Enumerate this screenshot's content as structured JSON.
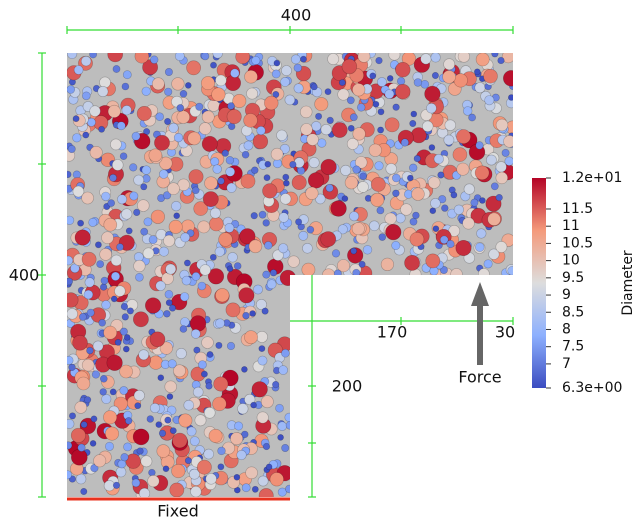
{
  "dimensions": {
    "top": "400",
    "left": "400",
    "notch_width": "170",
    "edge": "30",
    "notch_height": "200"
  },
  "labels": {
    "force": "Force",
    "fixed": "Fixed"
  },
  "colorbar": {
    "title": "Diameter",
    "range": [
      6.3,
      12.4
    ],
    "ticks": [
      {
        "value": 12.4,
        "label": "1.2e+01"
      },
      11.5,
      11,
      10.5,
      10,
      9.5,
      9,
      8.5,
      8,
      7.5,
      7,
      {
        "value": 6.3,
        "label": "6.3e+00"
      }
    ]
  }
}
